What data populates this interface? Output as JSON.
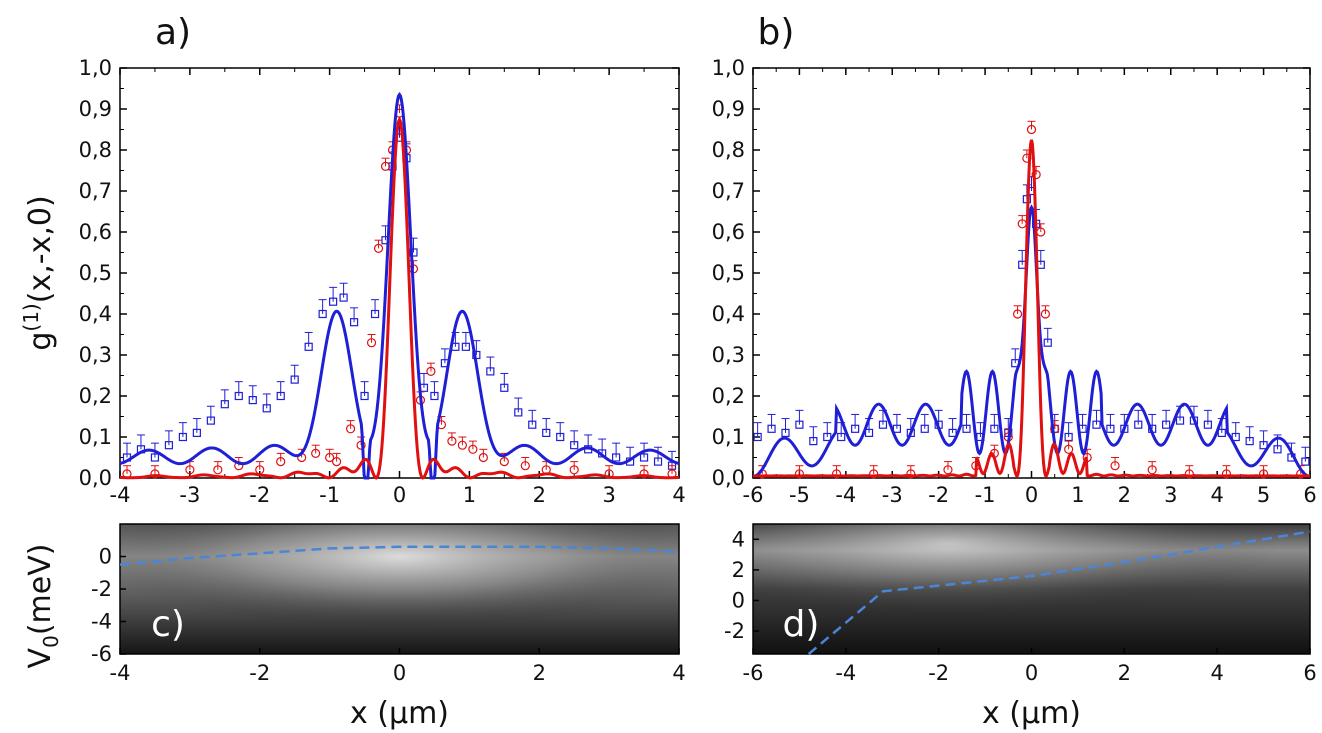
{
  "chart_data": [
    {
      "type": "line",
      "panel_label": "a)",
      "ylabel": "g(1)(x,-x,0)",
      "xlim": [
        -4,
        4
      ],
      "ylim": [
        0,
        1.0
      ],
      "x_ticks": [
        "-4",
        "-3",
        "-2",
        "-1",
        "0",
        "1",
        "2",
        "3",
        "4"
      ],
      "y_ticks": [
        "0,0",
        "0,1",
        "0,2",
        "0,3",
        "0,4",
        "0,5",
        "0,6",
        "0,7",
        "0,8",
        "0,9",
        "1,0"
      ],
      "colors": {
        "blue": "#1f1fd6",
        "red": "#e01010"
      },
      "series": [
        {
          "marker": "square",
          "line": "blue",
          "x": [
            -3.9,
            -3.7,
            -3.5,
            -3.3,
            -3.1,
            -2.9,
            -2.7,
            -2.5,
            -2.3,
            -2.1,
            -1.9,
            -1.7,
            -1.5,
            -1.3,
            -1.1,
            -0.95,
            -0.8,
            -0.65,
            -0.5,
            -0.35,
            -0.2,
            -0.1,
            0.0,
            0.1,
            0.2,
            0.35,
            0.5,
            0.65,
            0.8,
            0.95,
            1.1,
            1.3,
            1.5,
            1.7,
            1.9,
            2.1,
            2.3,
            2.5,
            2.7,
            2.9,
            3.1,
            3.3,
            3.5,
            3.7,
            3.9
          ],
          "y": [
            0.05,
            0.07,
            0.05,
            0.08,
            0.1,
            0.11,
            0.14,
            0.18,
            0.2,
            0.19,
            0.17,
            0.2,
            0.24,
            0.32,
            0.4,
            0.43,
            0.44,
            0.38,
            0.2,
            0.4,
            0.58,
            0.76,
            0.83,
            0.78,
            0.55,
            0.22,
            0.2,
            0.28,
            0.32,
            0.32,
            0.3,
            0.26,
            0.22,
            0.16,
            0.13,
            0.11,
            0.1,
            0.08,
            0.07,
            0.06,
            0.05,
            0.04,
            0.05,
            0.04,
            0.03
          ]
        },
        {
          "marker": "circle",
          "line": "red",
          "x": [
            -3.9,
            -3.5,
            -3.0,
            -2.6,
            -2.3,
            -2.0,
            -1.7,
            -1.4,
            -1.2,
            -1.0,
            -0.9,
            -0.7,
            -0.55,
            -0.4,
            -0.3,
            -0.2,
            -0.1,
            0.0,
            0.1,
            0.2,
            0.3,
            0.45,
            0.6,
            0.75,
            0.9,
            1.05,
            1.2,
            1.5,
            1.8,
            2.1,
            2.5,
            3.0,
            3.5,
            3.9
          ],
          "y": [
            0.01,
            0.01,
            0.02,
            0.02,
            0.03,
            0.02,
            0.04,
            0.05,
            0.06,
            0.05,
            0.04,
            0.12,
            0.08,
            0.33,
            0.56,
            0.76,
            0.8,
            0.89,
            0.8,
            0.51,
            0.19,
            0.26,
            0.13,
            0.09,
            0.08,
            0.07,
            0.05,
            0.04,
            0.03,
            0.02,
            0.02,
            0.01,
            0.01,
            0.01
          ]
        }
      ]
    },
    {
      "type": "line",
      "panel_label": "b)",
      "xlim": [
        -6,
        6
      ],
      "ylim": [
        0,
        1.0
      ],
      "x_ticks": [
        "-6",
        "-5",
        "-4",
        "-3",
        "-2",
        "-1",
        "0",
        "1",
        "2",
        "3",
        "4",
        "5",
        "6"
      ],
      "y_ticks": [
        "0,0",
        "0,1",
        "0,2",
        "0,3",
        "0,4",
        "0,5",
        "0,6",
        "0,7",
        "0,8",
        "0,9",
        "1,0"
      ],
      "series": [
        {
          "marker": "square",
          "line": "blue",
          "x": [
            -5.9,
            -5.6,
            -5.3,
            -5.0,
            -4.7,
            -4.4,
            -4.1,
            -3.8,
            -3.5,
            -3.2,
            -2.9,
            -2.6,
            -2.3,
            -2.0,
            -1.7,
            -1.4,
            -1.1,
            -0.8,
            -0.5,
            -0.35,
            -0.2,
            -0.1,
            0.0,
            0.1,
            0.2,
            0.35,
            0.5,
            0.8,
            1.1,
            1.4,
            1.7,
            2.0,
            2.3,
            2.6,
            2.9,
            3.2,
            3.5,
            3.8,
            4.1,
            4.4,
            4.7,
            5.0,
            5.3,
            5.6,
            5.9
          ],
          "y": [
            0.1,
            0.12,
            0.11,
            0.13,
            0.09,
            0.1,
            0.1,
            0.12,
            0.11,
            0.13,
            0.12,
            0.11,
            0.12,
            0.13,
            0.11,
            0.12,
            0.1,
            0.12,
            0.11,
            0.28,
            0.52,
            0.68,
            0.7,
            0.62,
            0.52,
            0.33,
            0.12,
            0.1,
            0.12,
            0.13,
            0.12,
            0.12,
            0.13,
            0.12,
            0.13,
            0.14,
            0.14,
            0.13,
            0.11,
            0.1,
            0.09,
            0.08,
            0.07,
            0.05,
            0.04
          ]
        },
        {
          "marker": "circle",
          "line": "red",
          "x": [
            -5.8,
            -5.0,
            -4.2,
            -3.4,
            -2.6,
            -1.8,
            -1.2,
            -0.8,
            -0.5,
            -0.3,
            -0.2,
            -0.1,
            0.0,
            0.1,
            0.2,
            0.3,
            0.5,
            0.8,
            1.2,
            1.8,
            2.6,
            3.4,
            4.2,
            5.0,
            5.8
          ],
          "y": [
            0.01,
            0.01,
            0.01,
            0.01,
            0.01,
            0.02,
            0.03,
            0.06,
            0.1,
            0.4,
            0.62,
            0.78,
            0.85,
            0.74,
            0.6,
            0.4,
            0.12,
            0.07,
            0.05,
            0.03,
            0.02,
            0.01,
            0.01,
            0.01,
            0.01
          ]
        }
      ]
    },
    {
      "type": "heatmap",
      "panel_label": "c)",
      "ylabel": "V0(meV)",
      "xlabel": "x (μm)",
      "xlim": [
        -4,
        4
      ],
      "ylim": [
        -6,
        2
      ],
      "x_ticks": [
        "-4",
        "-2",
        "0",
        "2",
        "4"
      ],
      "y_ticks": [
        "0",
        "-2",
        "-4",
        "-6"
      ],
      "potential_line": {
        "x": [
          -4,
          -3,
          -2,
          -1,
          0,
          1,
          2,
          3,
          4
        ],
        "y": [
          -0.5,
          -0.1,
          0.2,
          0.5,
          0.6,
          0.6,
          0.6,
          0.5,
          0.3
        ]
      }
    },
    {
      "type": "heatmap",
      "panel_label": "d)",
      "xlabel": "x (μm)",
      "xlim": [
        -6,
        6
      ],
      "ylim": [
        -3.5,
        5
      ],
      "x_ticks": [
        "-6",
        "-4",
        "-2",
        "0",
        "2",
        "4",
        "6"
      ],
      "y_ticks": [
        "4",
        "2",
        "0",
        "-2"
      ],
      "potential_line": {
        "x": [
          -4.8,
          -3.2,
          0,
          2,
          4,
          6
        ],
        "y": [
          -3.5,
          0.6,
          1.6,
          2.5,
          3.5,
          4.5
        ]
      }
    }
  ],
  "colors": {
    "blue": "#1f1fd6",
    "red": "#e01010",
    "dash": "#4a86d8"
  }
}
